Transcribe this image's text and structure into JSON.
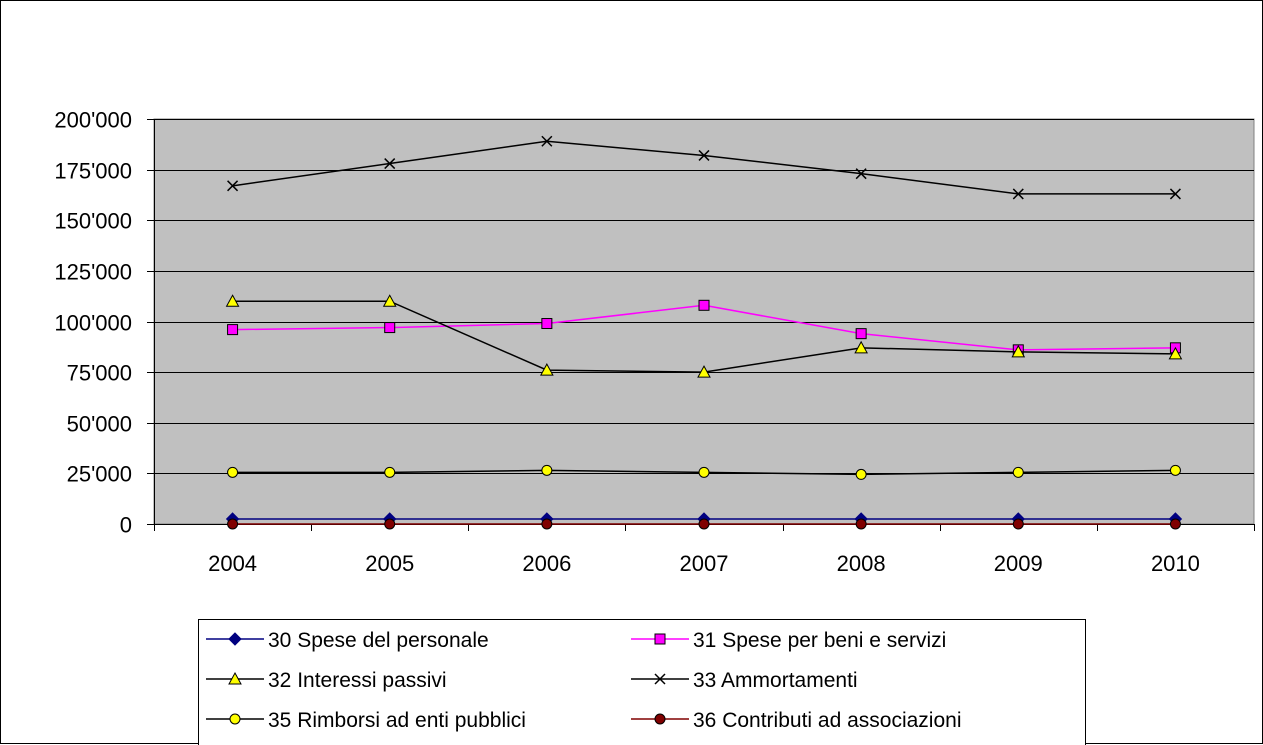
{
  "chart_data": {
    "type": "line",
    "title": "",
    "xlabel": "",
    "ylabel": "",
    "categories": [
      "2004",
      "2005",
      "2006",
      "2007",
      "2008",
      "2009",
      "2010"
    ],
    "ylim": [
      0,
      200000
    ],
    "yticks": [
      0,
      25000,
      50000,
      75000,
      100000,
      125000,
      150000,
      175000,
      200000
    ],
    "ytick_labels": [
      "0",
      "25'000",
      "50'000",
      "75'000",
      "100'000",
      "125'000",
      "150'000",
      "175'000",
      "200'000"
    ],
    "grid": true,
    "plot_background": "#c0c0c0",
    "legend_position": "bottom",
    "series": [
      {
        "name": "30 Spese del personale",
        "values": [
          2500,
          2500,
          2500,
          2500,
          2500,
          2500,
          2500
        ],
        "line_color": "#000080",
        "marker": "diamond",
        "marker_fill": "#000080"
      },
      {
        "name": "31 Spese per beni e servizi",
        "values": [
          96000,
          97000,
          99000,
          108000,
          94000,
          86000,
          87000
        ],
        "line_color": "#ff00ff",
        "marker": "square",
        "marker_fill": "#ff00ff"
      },
      {
        "name": "32 Interessi passivi",
        "values": [
          110000,
          110000,
          76000,
          75000,
          87000,
          85000,
          84000
        ],
        "line_color": "#000000",
        "marker": "triangle",
        "marker_fill": "#ffff00"
      },
      {
        "name": "33 Ammortamenti",
        "values": [
          167000,
          178000,
          189000,
          182000,
          173000,
          163000,
          163000
        ],
        "line_color": "#000000",
        "marker": "x",
        "marker_fill": "none"
      },
      {
        "name": "35 Rimborsi ad enti pubblici",
        "values": [
          25500,
          25500,
          26500,
          25500,
          24500,
          25500,
          26500
        ],
        "line_color": "#000000",
        "marker": "circle",
        "marker_fill": "#ffff00"
      },
      {
        "name": "36 Contributi ad associazioni",
        "values": [
          0,
          0,
          0,
          0,
          0,
          0,
          0
        ],
        "line_color": "#800000",
        "marker": "circle",
        "marker_fill": "#800000"
      }
    ]
  }
}
